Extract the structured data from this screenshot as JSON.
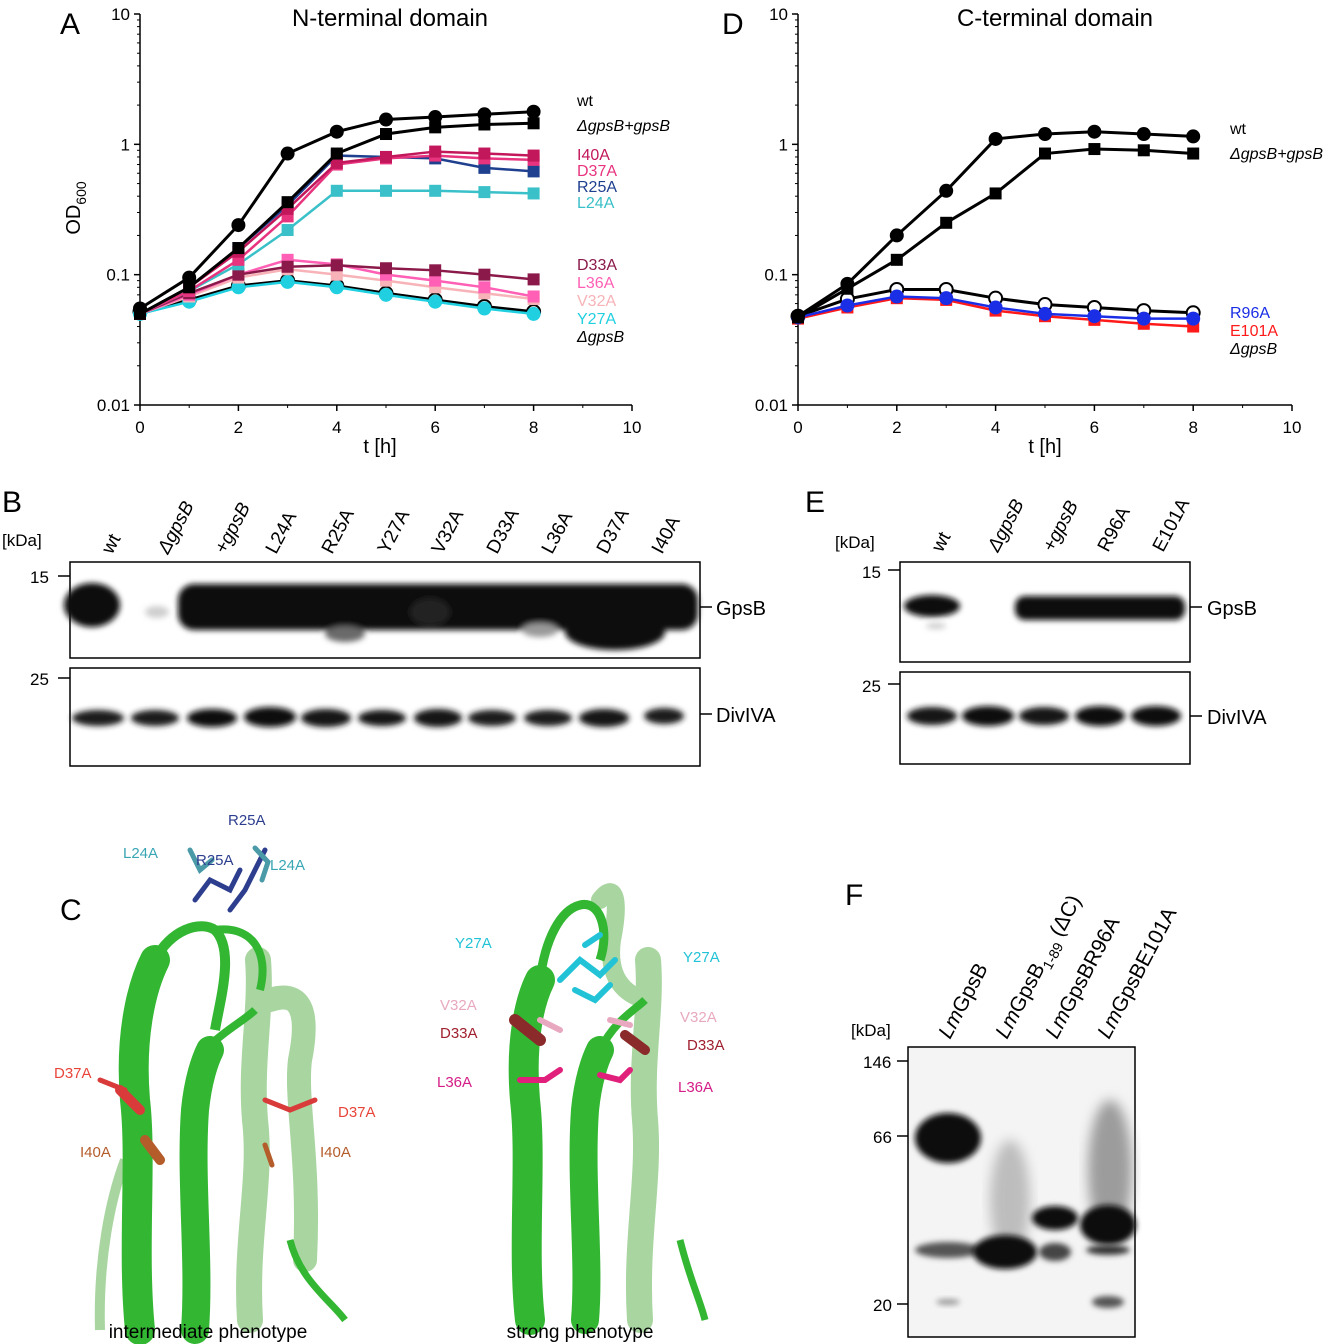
{
  "panels": {
    "A": "A",
    "B": "B",
    "C": "C",
    "D": "D",
    "E": "E",
    "F": "F"
  },
  "chart_data": [
    {
      "type": "line",
      "title": "N-terminal domain",
      "xlabel": "t [h]",
      "ylabel_main": "OD",
      "ylabel_sub": "600",
      "y_scale": "log",
      "xlim": [
        0,
        10
      ],
      "ylim": [
        0.01,
        10
      ],
      "x_ticks": [
        "0",
        "2",
        "4",
        "6",
        "8",
        "10"
      ],
      "y_ticks": [
        "0.01",
        "0.1",
        "1",
        "10"
      ],
      "x": [
        0,
        1,
        2,
        3,
        4,
        5,
        6,
        7,
        8
      ],
      "series": [
        {
          "name": "wt",
          "color": "#000000",
          "marker": "circle",
          "values": [
            0.055,
            0.095,
            0.24,
            0.85,
            1.25,
            1.55,
            1.62,
            1.7,
            1.78
          ]
        },
        {
          "name": "ΔgpsB+gpsB",
          "color": "#000000",
          "marker": "square",
          "values": [
            0.05,
            0.08,
            0.16,
            0.36,
            0.85,
            1.2,
            1.35,
            1.42,
            1.45
          ]
        },
        {
          "name": "I40A",
          "color": "#c2185b",
          "marker": "square",
          "values": [
            0.05,
            0.08,
            0.15,
            0.32,
            0.72,
            0.8,
            0.88,
            0.85,
            0.82
          ]
        },
        {
          "name": "D37A",
          "color": "#e8337f",
          "marker": "square",
          "values": [
            0.05,
            0.075,
            0.13,
            0.28,
            0.7,
            0.78,
            0.82,
            0.78,
            0.76
          ]
        },
        {
          "name": "R25A",
          "color": "#1f3f8f",
          "marker": "square",
          "values": [
            0.05,
            0.08,
            0.16,
            0.34,
            0.82,
            0.8,
            0.78,
            0.66,
            0.62
          ]
        },
        {
          "name": "L24A",
          "color": "#3ac0c8",
          "marker": "square",
          "values": [
            0.05,
            0.075,
            0.12,
            0.22,
            0.44,
            0.44,
            0.44,
            0.43,
            0.42
          ]
        },
        {
          "name": "D33A",
          "color": "#8b1a4a",
          "marker": "square",
          "values": [
            0.05,
            0.072,
            0.1,
            0.115,
            0.118,
            0.112,
            0.108,
            0.1,
            0.092
          ]
        },
        {
          "name": "L36A",
          "color": "#ff5fb4",
          "marker": "square",
          "values": [
            0.05,
            0.07,
            0.1,
            0.13,
            0.12,
            0.1,
            0.09,
            0.08,
            0.068
          ]
        },
        {
          "name": "V32A",
          "color": "#f7b3b8",
          "marker": "square",
          "values": [
            0.05,
            0.068,
            0.095,
            0.11,
            0.1,
            0.09,
            0.08,
            0.072,
            0.065
          ]
        },
        {
          "name": "Y27A",
          "color": "#20d0e0",
          "marker": "circle",
          "values": [
            0.05,
            0.062,
            0.08,
            0.088,
            0.08,
            0.07,
            0.062,
            0.055,
            0.05
          ]
        },
        {
          "name": "ΔgpsB",
          "color": "#000000",
          "marker": "open-circle",
          "values": [
            0.052,
            0.064,
            0.082,
            0.09,
            0.082,
            0.072,
            0.064,
            0.057,
            0.052
          ]
        }
      ]
    },
    {
      "type": "line",
      "title": "C-terminal domain",
      "xlabel": "t [h]",
      "y_scale": "log",
      "xlim": [
        0,
        10
      ],
      "ylim": [
        0.01,
        10
      ],
      "x_ticks": [
        "0",
        "2",
        "4",
        "6",
        "8",
        "10"
      ],
      "y_ticks": [
        "0.01",
        "0.1",
        "1",
        "10"
      ],
      "x": [
        0,
        1,
        2,
        3,
        4,
        5,
        6,
        7,
        8
      ],
      "series": [
        {
          "name": "wt",
          "color": "#000000",
          "marker": "circle",
          "values": [
            0.048,
            0.085,
            0.2,
            0.44,
            1.1,
            1.2,
            1.25,
            1.2,
            1.15
          ]
        },
        {
          "name": "ΔgpsB+gpsB",
          "color": "#000000",
          "marker": "square",
          "values": [
            0.047,
            0.078,
            0.13,
            0.25,
            0.42,
            0.85,
            0.92,
            0.9,
            0.85
          ]
        },
        {
          "name": "R96A",
          "color": "#1a2ee6",
          "marker": "circle",
          "values": [
            0.047,
            0.058,
            0.068,
            0.066,
            0.056,
            0.05,
            0.048,
            0.046,
            0.046
          ]
        },
        {
          "name": "E101A",
          "color": "#ff1a1a",
          "marker": "square",
          "values": [
            0.046,
            0.056,
            0.066,
            0.064,
            0.053,
            0.048,
            0.045,
            0.042,
            0.04
          ]
        },
        {
          "name": "ΔgpsB",
          "color": "#000000",
          "marker": "open-circle",
          "values": [
            0.048,
            0.065,
            0.077,
            0.077,
            0.066,
            0.059,
            0.056,
            0.053,
            0.051
          ]
        }
      ]
    }
  ],
  "blotB": {
    "kda": "[kDa]",
    "lanes": [
      "wt",
      "ΔgpsB",
      "+gpsB",
      "L24A",
      "R25A",
      "Y27A",
      "V32A",
      "D33A",
      "L36A",
      "D37A",
      "I40A"
    ],
    "marker_top": "15",
    "marker_bottom": "25",
    "band_top": "GpsB",
    "band_bottom": "DivIVA"
  },
  "blotE": {
    "kda": "[kDa]",
    "lanes": [
      "wt",
      "ΔgpsB",
      "+gpsB",
      "R96A",
      "E101A"
    ],
    "marker_top": "15",
    "marker_bottom": "25",
    "band_top": "GpsB",
    "band_bottom": "DivIVA"
  },
  "structC": {
    "left_caption": "intermediate phenotype",
    "right_caption": "strong phenotype",
    "left_labels": {
      "r25a_top": "R25A",
      "l24a_left": "L24A",
      "r25a_mid": "R25A",
      "l24a_right": "L24A",
      "d37a_left": "D37A",
      "d37a_right": "D37A",
      "i40a_left": "I40A",
      "i40a_right": "I40A"
    },
    "right_labels": {
      "y27a_left": "Y27A",
      "y27a_right": "Y27A",
      "v32a_left": "V32A",
      "v32a_right": "V32A",
      "d33a_left": "D33A",
      "d33a_right": "D33A",
      "l36a_left": "L36A",
      "l36a_right": "L36A"
    }
  },
  "gelF": {
    "kda": "[kDa]",
    "markers": [
      "146",
      "66",
      "20"
    ],
    "lanes": [
      {
        "pre": "Lm",
        "name": "GpsB",
        "sub": "",
        "post": ""
      },
      {
        "pre": "Lm",
        "name": "GpsB",
        "sub": "1-89",
        "post": " (ΔC)"
      },
      {
        "pre": "Lm",
        "name": "GpsBR96A",
        "sub": "",
        "post": ""
      },
      {
        "pre": "Lm",
        "name": "GpsBE101A",
        "sub": "",
        "post": ""
      }
    ]
  }
}
